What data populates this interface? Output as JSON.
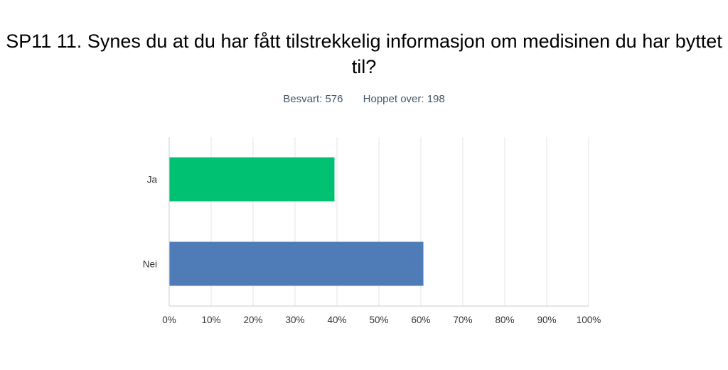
{
  "title": "SP11 11. Synes du at du har fått tilstrekkelig informasjon om medisinen du har byttet til?",
  "stats": {
    "answered": "Besvart: 576",
    "skipped": "Hoppet over: 198"
  },
  "colors": {
    "ja": "#00c072",
    "nei": "#4f7cb6",
    "grid": "#e6e6e6",
    "axis": "#cccccc"
  },
  "chart_data": {
    "type": "bar",
    "orientation": "horizontal",
    "categories": [
      "Ja",
      "Nei"
    ],
    "values": [
      39.4,
      60.6
    ],
    "unit": "%",
    "xlim": [
      0,
      100
    ],
    "xticks": [
      "0%",
      "10%",
      "20%",
      "30%",
      "40%",
      "50%",
      "60%",
      "70%",
      "80%",
      "90%",
      "100%"
    ],
    "grid": true,
    "legend": "none"
  }
}
